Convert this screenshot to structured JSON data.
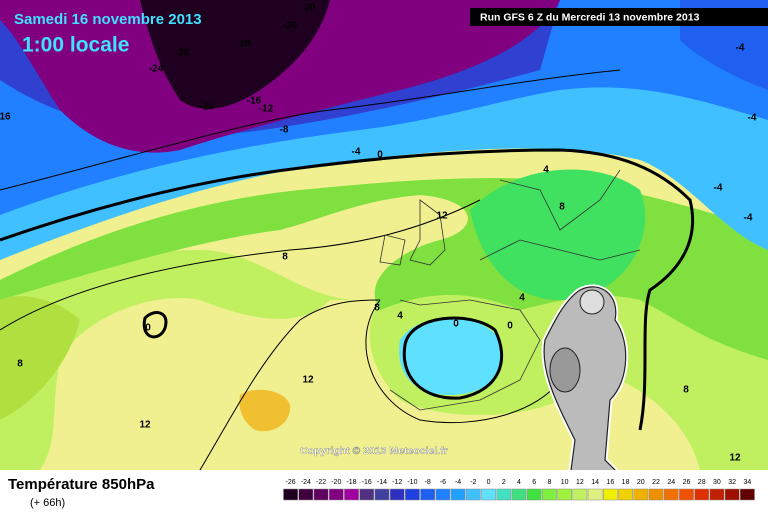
{
  "header": {
    "date": "Samedi 16 novembre 2013",
    "time": "1:00 locale",
    "run": "Run GFS 6 Z du Mercredi 13 novembre 2013"
  },
  "footer": {
    "title": "Température 850hPa",
    "subtitle": "(+ 66h)",
    "copyright": "Copyright © 2013 Meteociel.fr"
  },
  "scale": {
    "values": [
      -26,
      -24,
      -22,
      -20,
      -18,
      -16,
      -14,
      -12,
      -10,
      -8,
      -6,
      -4,
      -2,
      0,
      2,
      4,
      6,
      8,
      10,
      12,
      14,
      16,
      18,
      20,
      22,
      24,
      26,
      28,
      30,
      32,
      34
    ],
    "colors": [
      "#200020",
      "#400040",
      "#600060",
      "#800080",
      "#a000a0",
      "#503080",
      "#4040a0",
      "#3030c0",
      "#2040e0",
      "#2060f0",
      "#2080ff",
      "#20a0ff",
      "#40c0ff",
      "#60e0ff",
      "#40e0c0",
      "#40e080",
      "#40e040",
      "#80f040",
      "#a0f040",
      "#c0f060",
      "#e0f080",
      "#f0f000",
      "#f0d000",
      "#f0b000",
      "#f09000",
      "#f07000",
      "#f05000",
      "#e03000",
      "#c02000",
      "#a01000",
      "#600000"
    ]
  },
  "contour_labels": [
    -20,
    -20,
    -28,
    -28,
    -24,
    -20,
    -16,
    -12,
    -8,
    -4,
    0,
    16,
    -4,
    -4,
    -4,
    -4,
    4,
    8,
    12,
    8,
    8,
    4,
    0,
    0,
    0,
    4,
    12,
    12,
    8,
    8,
    12
  ]
}
